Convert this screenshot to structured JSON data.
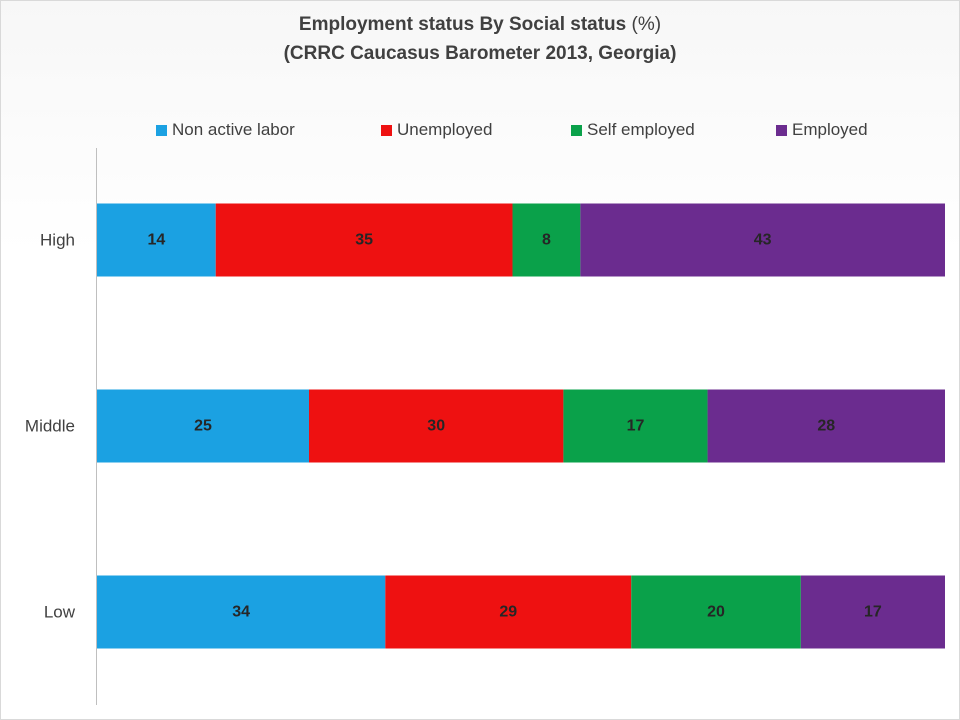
{
  "chart_data": {
    "type": "bar",
    "orientation": "horizontal",
    "stacked": true,
    "title_line1_main": "Employment status By Social status",
    "title_line1_unit": "(%)",
    "title_line2": "(CRRC Caucasus Barometer 2013, Georgia)",
    "categories": [
      "High",
      "Middle",
      "Low"
    ],
    "series": [
      {
        "name": "Non active labor",
        "color": "#1ba1e2",
        "values": [
          14,
          25,
          34
        ]
      },
      {
        "name": "Unemployed",
        "color": "#ee1111",
        "values": [
          35,
          30,
          29
        ]
      },
      {
        "name": "Self employed",
        "color": "#0aa14a",
        "values": [
          8,
          17,
          20
        ]
      },
      {
        "name": "Employed",
        "color": "#6b2c8f",
        "values": [
          43,
          28,
          17
        ]
      }
    ],
    "xlim": [
      0,
      100
    ],
    "legend_position": "top",
    "grid": false,
    "data_label_color": "#262626"
  }
}
